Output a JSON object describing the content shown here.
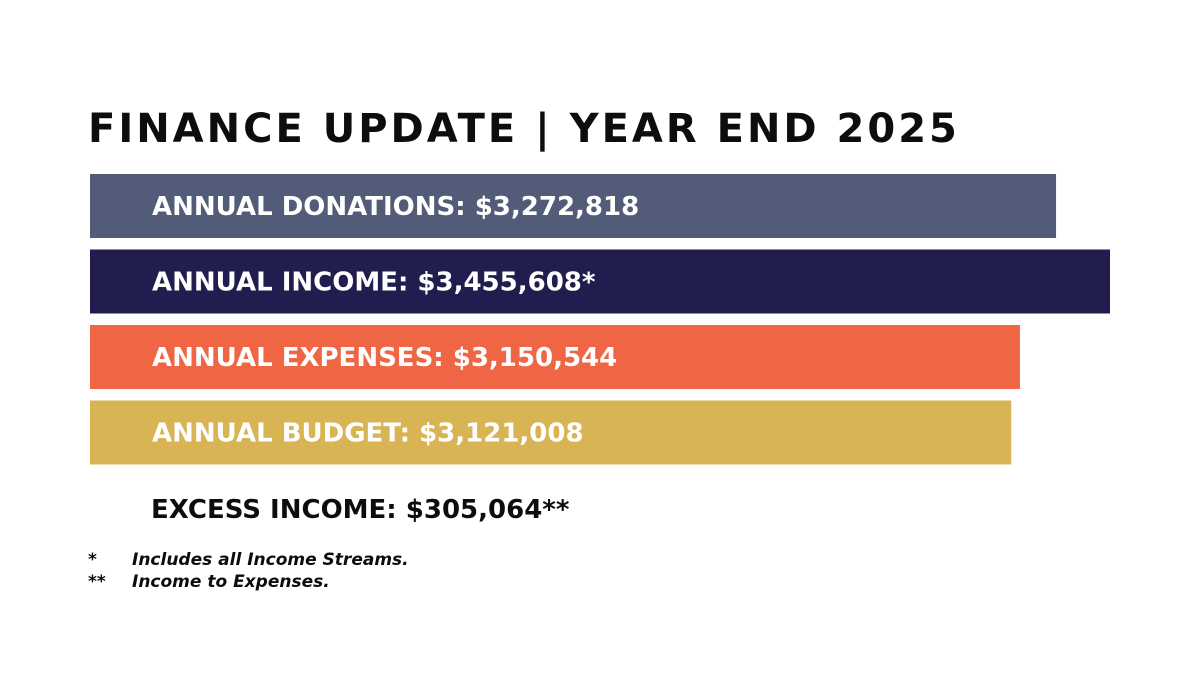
{
  "chart_data": {
    "type": "bar",
    "orientation": "horizontal",
    "title": "FINANCE UPDATE | YEAR END 2025",
    "categories": [
      "ANNUAL DONATIONS:",
      "ANNUAL INCOME:",
      "ANNUAL EXPENSES:",
      "ANNUAL BUDGET:"
    ],
    "values": [
      3272818,
      3455608,
      3150544,
      3121008
    ],
    "value_labels": [
      "$3,272,818",
      "$3,455,608*",
      "$3,150,544",
      "$3,121,008"
    ],
    "colors": [
      "#525c78",
      "#211e4f",
      "#f06645",
      "#d8b455"
    ],
    "summary": {
      "label": "EXCESS INCOME:",
      "value_label": "$305,064**"
    },
    "footnotes": [
      {
        "marker": "*",
        "text": "Includes all Income Streams."
      },
      {
        "marker": "**",
        "text": "Income to Expenses."
      }
    ]
  }
}
